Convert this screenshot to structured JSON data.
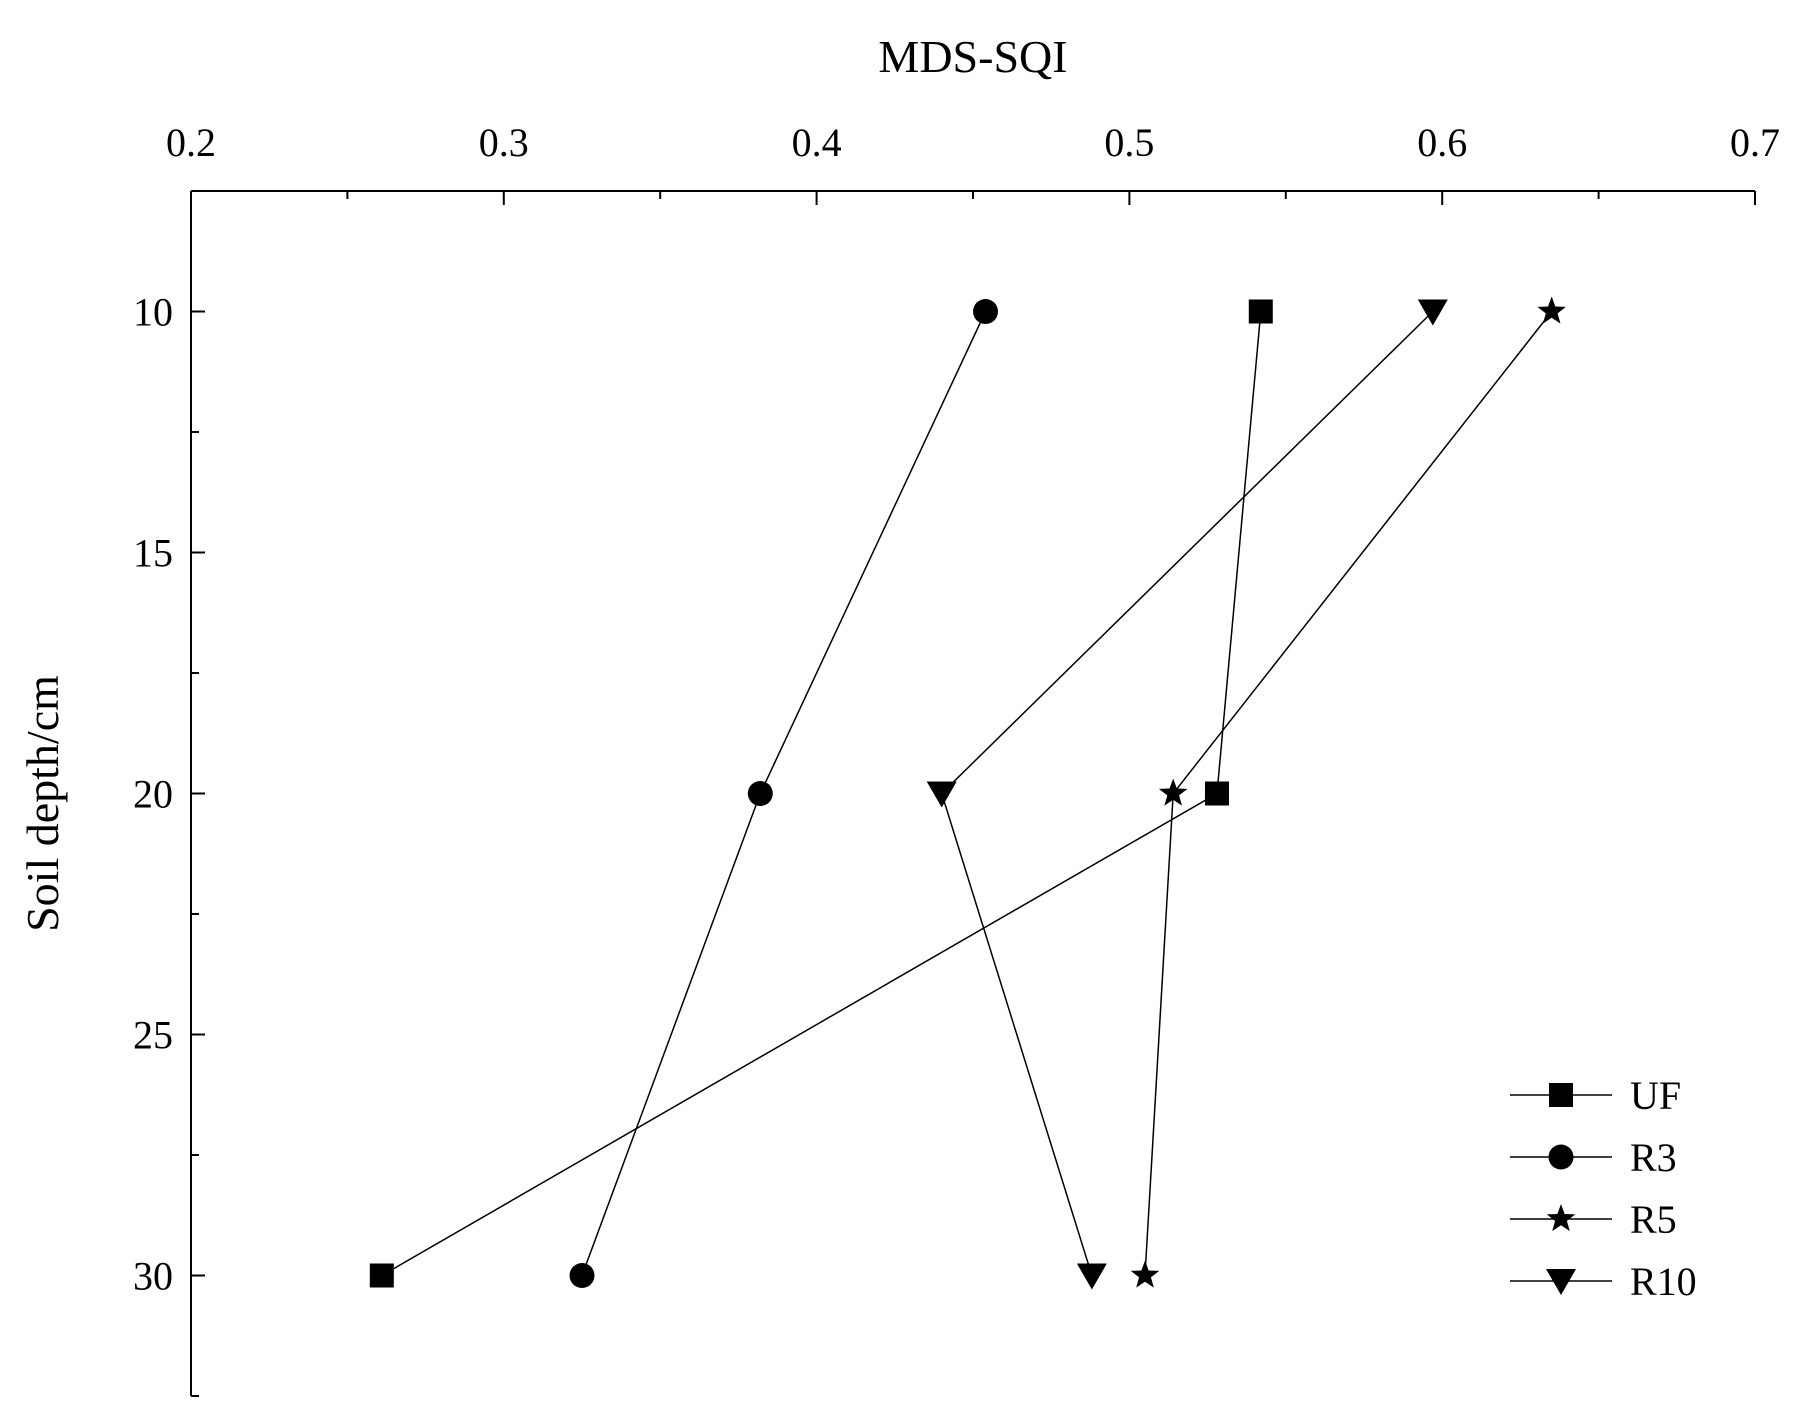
{
  "chart_data": {
    "type": "line",
    "xlabel": "MDS-SQI",
    "ylabel": "Soil depth/cm",
    "xlim": [
      0.2,
      0.7
    ],
    "ylim": [
      7.5,
      32.5
    ],
    "y_inverted": true,
    "x_axis_position": "top",
    "x_ticks": [
      "0.2",
      "0.3",
      "0.4",
      "0.5",
      "0.6",
      "0.7"
    ],
    "y_ticks": [
      "10",
      "15",
      "20",
      "25",
      "30"
    ],
    "grid": false,
    "legend_position": "bottom-right",
    "series": [
      {
        "name": "UF",
        "marker": "square",
        "color": "#000000",
        "points": [
          {
            "x": 0.542,
            "y": 10
          },
          {
            "x": 0.528,
            "y": 20
          },
          {
            "x": 0.261,
            "y": 30
          }
        ]
      },
      {
        "name": "R3",
        "marker": "circle",
        "color": "#000000",
        "points": [
          {
            "x": 0.454,
            "y": 10
          },
          {
            "x": 0.382,
            "y": 20
          },
          {
            "x": 0.325,
            "y": 30
          }
        ]
      },
      {
        "name": "R5",
        "marker": "star",
        "color": "#000000",
        "points": [
          {
            "x": 0.635,
            "y": 10
          },
          {
            "x": 0.514,
            "y": 20
          },
          {
            "x": 0.505,
            "y": 30
          }
        ]
      },
      {
        "name": "R10",
        "marker": "triangle-down",
        "color": "#000000",
        "points": [
          {
            "x": 0.597,
            "y": 10
          },
          {
            "x": 0.44,
            "y": 20
          },
          {
            "x": 0.488,
            "y": 30
          }
        ]
      }
    ]
  }
}
